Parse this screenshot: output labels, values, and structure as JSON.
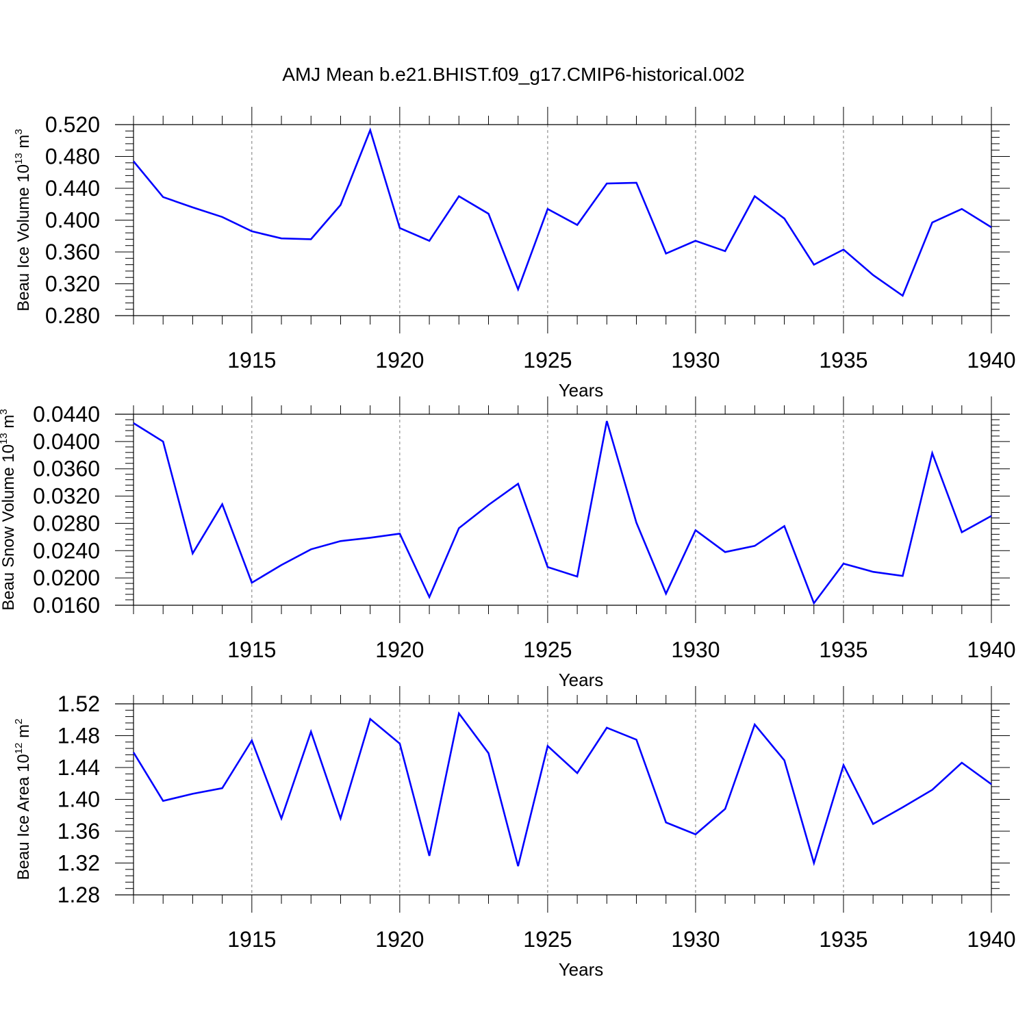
{
  "title": "AMJ Mean b.e21.BHIST.f09_g17.CMIP6-historical.002",
  "line_color": "#0000ff",
  "chart_data": [
    {
      "type": "line",
      "ylabel": {
        "main": "Beau Ice Volume 10",
        "exp": "13",
        "unit": " m",
        "unit_exp": "3"
      },
      "xlabel": "Years",
      "xlim": [
        1911,
        1940
      ],
      "ylim": [
        0.28,
        0.52
      ],
      "yticks": [
        "0.280",
        "0.320",
        "0.360",
        "0.400",
        "0.440",
        "0.480",
        "0.520"
      ],
      "xticks": [
        "1915",
        "1920",
        "1925",
        "1930",
        "1935",
        "1940"
      ],
      "grid": "vertical dashed at major x ticks",
      "series": [
        {
          "x": [
            1911,
            1912,
            1913,
            1914,
            1915,
            1916,
            1917,
            1918,
            1919,
            1920,
            1921,
            1922,
            1923,
            1924,
            1925,
            1926,
            1927,
            1928,
            1929,
            1930,
            1931,
            1932,
            1933,
            1934,
            1935,
            1936,
            1937,
            1938,
            1939,
            1940
          ],
          "values": [
            0.474,
            0.429,
            0.416,
            0.404,
            0.386,
            0.377,
            0.376,
            0.419,
            0.513,
            0.39,
            0.374,
            0.43,
            0.408,
            0.313,
            0.414,
            0.394,
            0.446,
            0.447,
            0.358,
            0.374,
            0.361,
            0.43,
            0.402,
            0.344,
            0.363,
            0.331,
            0.305,
            0.397,
            0.414,
            0.391
          ]
        }
      ]
    },
    {
      "type": "line",
      "ylabel": {
        "main": "Beau Snow Volume 10",
        "exp": "13",
        "unit": " m",
        "unit_exp": "3"
      },
      "xlabel": "Years",
      "xlim": [
        1911,
        1940
      ],
      "ylim": [
        0.016,
        0.044
      ],
      "yticks": [
        "0.0160",
        "0.0200",
        "0.0240",
        "0.0280",
        "0.0320",
        "0.0360",
        "0.0400",
        "0.0440"
      ],
      "xticks": [
        "1915",
        "1920",
        "1925",
        "1930",
        "1935",
        "1940"
      ],
      "grid": "vertical dashed at major x ticks",
      "series": [
        {
          "x": [
            1911,
            1912,
            1913,
            1914,
            1915,
            1916,
            1917,
            1918,
            1919,
            1920,
            1921,
            1922,
            1923,
            1924,
            1925,
            1926,
            1927,
            1928,
            1929,
            1930,
            1931,
            1932,
            1933,
            1934,
            1935,
            1936,
            1937,
            1938,
            1939,
            1940
          ],
          "values": [
            0.0427,
            0.04,
            0.0236,
            0.0308,
            0.0193,
            0.0219,
            0.0242,
            0.0254,
            0.0259,
            0.0265,
            0.0172,
            0.0273,
            0.0307,
            0.0338,
            0.0216,
            0.0202,
            0.043,
            0.0281,
            0.0177,
            0.027,
            0.0238,
            0.0247,
            0.0276,
            0.0163,
            0.0221,
            0.0209,
            0.0203,
            0.0383,
            0.0267,
            0.0291
          ]
        }
      ]
    },
    {
      "type": "line",
      "ylabel": {
        "main": "Beau Ice Area 10",
        "exp": "12",
        "unit": " m",
        "unit_exp": "2"
      },
      "xlabel": "Years",
      "xlim": [
        1911,
        1940
      ],
      "ylim": [
        1.28,
        1.52
      ],
      "yticks": [
        "1.28",
        "1.32",
        "1.36",
        "1.40",
        "1.44",
        "1.48",
        "1.52"
      ],
      "xticks": [
        "1915",
        "1920",
        "1925",
        "1930",
        "1935",
        "1940"
      ],
      "grid": "vertical dashed at major x ticks",
      "series": [
        {
          "x": [
            1911,
            1912,
            1913,
            1914,
            1915,
            1916,
            1917,
            1918,
            1919,
            1920,
            1921,
            1922,
            1923,
            1924,
            1925,
            1926,
            1927,
            1928,
            1929,
            1930,
            1931,
            1932,
            1933,
            1934,
            1935,
            1936,
            1937,
            1938,
            1939,
            1940
          ],
          "values": [
            1.459,
            1.398,
            1.407,
            1.414,
            1.474,
            1.376,
            1.485,
            1.376,
            1.501,
            1.47,
            1.329,
            1.508,
            1.458,
            1.316,
            1.467,
            1.433,
            1.49,
            1.475,
            1.371,
            1.356,
            1.388,
            1.494,
            1.449,
            1.32,
            1.443,
            1.369,
            1.39,
            1.412,
            1.446,
            1.419
          ]
        }
      ]
    }
  ]
}
